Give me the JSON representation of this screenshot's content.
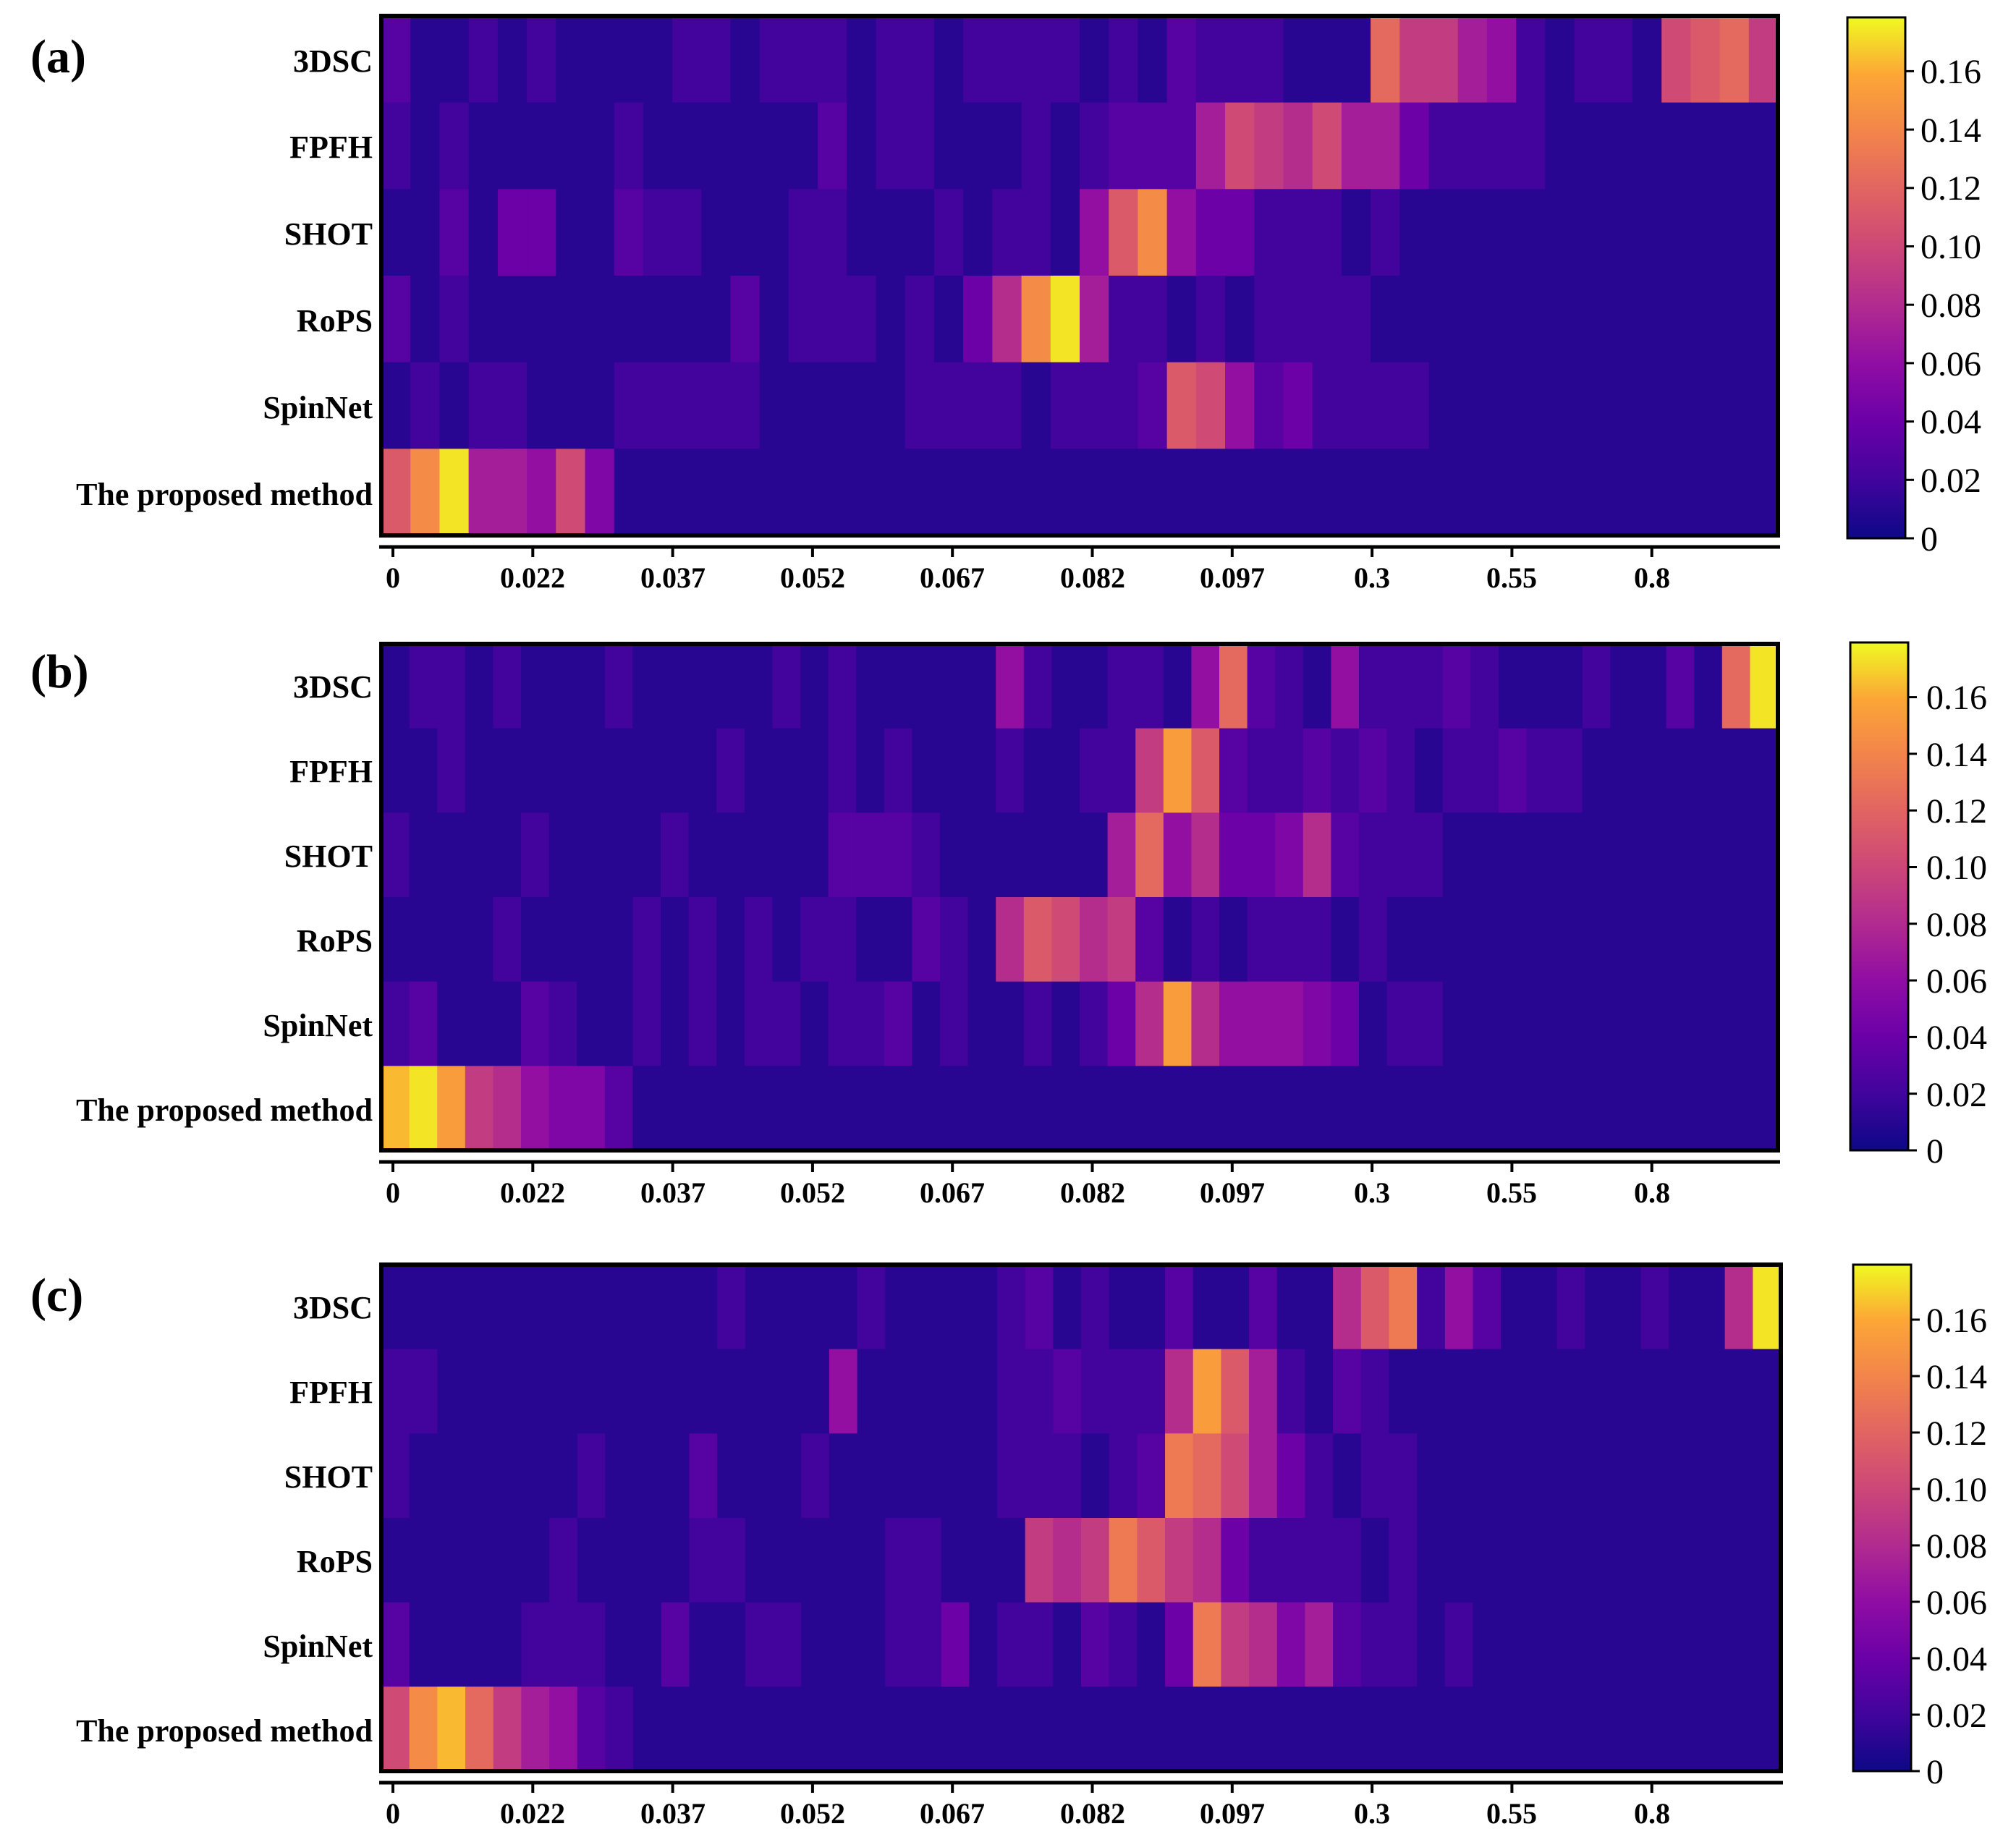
{
  "chart_data": [
    {
      "type": "heatmap",
      "panel_label": "(a)",
      "rows": [
        "3DSC",
        "FPFH",
        "SHOT",
        "RoPS",
        "SpinNet",
        "The proposed method"
      ],
      "xtick_labels": [
        "0",
        "0.022",
        "0.037",
        "0.052",
        "0.067",
        "0.082",
        "0.097",
        "0.3",
        "0.55",
        "0.8"
      ],
      "colorbar": {
        "colormap": "plasma",
        "range": [
          0,
          0.175
        ],
        "ticks": [
          "0",
          "0.02",
          "0.04",
          "0.06",
          "0.08",
          "0.10",
          "0.12",
          "0.14",
          "0.16"
        ]
      },
      "values": [
        [
          0.03,
          0.01,
          0.01,
          0.02,
          0.01,
          0.02,
          0.01,
          0.01,
          0.01,
          0.01,
          0.02,
          0.02,
          0.01,
          0.02,
          0.02,
          0.02,
          0.01,
          0.02,
          0.02,
          0.01,
          0.02,
          0.02,
          0.02,
          0.02,
          0.01,
          0.02,
          0.01,
          0.03,
          0.02,
          0.02,
          0.02,
          0.01,
          0.01,
          0.01,
          0.12,
          0.09,
          0.09,
          0.07,
          0.06,
          0.02,
          0.01,
          0.02,
          0.02,
          0.01,
          0.1,
          0.11,
          0.12,
          0.09
        ],
        [
          0.02,
          0.01,
          0.02,
          0.01,
          0.01,
          0.01,
          0.01,
          0.01,
          0.02,
          0.01,
          0.01,
          0.01,
          0.01,
          0.01,
          0.01,
          0.03,
          0.01,
          0.02,
          0.02,
          0.01,
          0.01,
          0.01,
          0.02,
          0.01,
          0.02,
          0.03,
          0.03,
          0.03,
          0.07,
          0.1,
          0.09,
          0.08,
          0.1,
          0.07,
          0.07,
          0.04,
          0.02,
          0.02,
          0.02,
          0.02,
          0.01,
          0.01,
          0.01,
          0.01,
          0.01,
          0.01,
          0.01,
          0.01
        ],
        [
          0.01,
          0.01,
          0.03,
          0.01,
          0.04,
          0.04,
          0.01,
          0.01,
          0.03,
          0.02,
          0.02,
          0.01,
          0.01,
          0.01,
          0.02,
          0.02,
          0.01,
          0.01,
          0.01,
          0.02,
          0.01,
          0.02,
          0.02,
          0.01,
          0.06,
          0.11,
          0.14,
          0.06,
          0.04,
          0.04,
          0.02,
          0.02,
          0.02,
          0.01,
          0.02,
          0.01,
          0.01,
          0.01,
          0.01,
          0.01,
          0.01,
          0.01,
          0.01,
          0.01,
          0.01,
          0.01,
          0.01,
          0.01
        ],
        [
          0.03,
          0.01,
          0.02,
          0.01,
          0.01,
          0.01,
          0.01,
          0.01,
          0.01,
          0.01,
          0.01,
          0.01,
          0.03,
          0.01,
          0.02,
          0.02,
          0.02,
          0.01,
          0.02,
          0.01,
          0.04,
          0.08,
          0.14,
          0.17,
          0.07,
          0.02,
          0.02,
          0.01,
          0.02,
          0.01,
          0.02,
          0.02,
          0.02,
          0.02,
          0.01,
          0.01,
          0.01,
          0.01,
          0.01,
          0.01,
          0.01,
          0.01,
          0.01,
          0.01,
          0.01,
          0.01,
          0.01,
          0.01
        ],
        [
          0.01,
          0.02,
          0.01,
          0.02,
          0.02,
          0.01,
          0.01,
          0.01,
          0.02,
          0.02,
          0.02,
          0.02,
          0.02,
          0.01,
          0.01,
          0.01,
          0.01,
          0.01,
          0.02,
          0.02,
          0.02,
          0.02,
          0.01,
          0.02,
          0.02,
          0.02,
          0.03,
          0.11,
          0.1,
          0.06,
          0.03,
          0.04,
          0.02,
          0.02,
          0.02,
          0.02,
          0.01,
          0.01,
          0.01,
          0.01,
          0.01,
          0.01,
          0.01,
          0.01,
          0.01,
          0.01,
          0.01,
          0.01
        ],
        [
          0.11,
          0.14,
          0.17,
          0.07,
          0.07,
          0.06,
          0.1,
          0.05,
          0.01,
          0.01,
          0.01,
          0.01,
          0.01,
          0.01,
          0.01,
          0.01,
          0.01,
          0.01,
          0.01,
          0.01,
          0.01,
          0.01,
          0.01,
          0.01,
          0.01,
          0.01,
          0.01,
          0.01,
          0.01,
          0.01,
          0.01,
          0.01,
          0.01,
          0.01,
          0.01,
          0.01,
          0.01,
          0.01,
          0.01,
          0.01,
          0.01,
          0.01,
          0.01,
          0.01,
          0.01,
          0.01,
          0.01,
          0.01
        ]
      ]
    },
    {
      "type": "heatmap",
      "panel_label": "(b)",
      "rows": [
        "3DSC",
        "FPFH",
        "SHOT",
        "RoPS",
        "SpinNet",
        "The proposed method"
      ],
      "xtick_labels": [
        "0",
        "0.022",
        "0.037",
        "0.052",
        "0.067",
        "0.082",
        "0.097",
        "0.3",
        "0.55",
        "0.8"
      ],
      "colorbar": {
        "colormap": "plasma",
        "range": [
          0,
          0.175
        ],
        "ticks": [
          "0",
          "0.02",
          "0.04",
          "0.06",
          "0.08",
          "0.10",
          "0.12",
          "0.14",
          "0.16"
        ]
      },
      "values": [
        [
          0.01,
          0.02,
          0.02,
          0.01,
          0.02,
          0.01,
          0.01,
          0.01,
          0.02,
          0.01,
          0.01,
          0.01,
          0.01,
          0.01,
          0.02,
          0.01,
          0.02,
          0.01,
          0.01,
          0.01,
          0.01,
          0.01,
          0.06,
          0.02,
          0.01,
          0.01,
          0.02,
          0.02,
          0.01,
          0.06,
          0.12,
          0.03,
          0.02,
          0.01,
          0.06,
          0.02,
          0.02,
          0.02,
          0.03,
          0.02,
          0.01,
          0.01,
          0.01,
          0.02,
          0.01,
          0.01,
          0.03,
          0.01,
          0.12,
          0.17
        ],
        [
          0.01,
          0.01,
          0.02,
          0.01,
          0.01,
          0.01,
          0.01,
          0.01,
          0.01,
          0.01,
          0.01,
          0.01,
          0.02,
          0.01,
          0.01,
          0.01,
          0.02,
          0.01,
          0.02,
          0.01,
          0.01,
          0.01,
          0.02,
          0.01,
          0.01,
          0.02,
          0.02,
          0.09,
          0.15,
          0.11,
          0.03,
          0.02,
          0.02,
          0.03,
          0.02,
          0.03,
          0.02,
          0.01,
          0.02,
          0.02,
          0.03,
          0.02,
          0.02,
          0.01,
          0.01,
          0.01,
          0.01,
          0.01,
          0.01,
          0.01
        ],
        [
          0.02,
          0.01,
          0.01,
          0.01,
          0.01,
          0.02,
          0.01,
          0.01,
          0.01,
          0.01,
          0.02,
          0.01,
          0.01,
          0.01,
          0.01,
          0.01,
          0.03,
          0.03,
          0.03,
          0.02,
          0.01,
          0.01,
          0.01,
          0.01,
          0.01,
          0.01,
          0.07,
          0.12,
          0.06,
          0.08,
          0.04,
          0.04,
          0.05,
          0.08,
          0.03,
          0.02,
          0.02,
          0.02,
          0.01,
          0.01,
          0.01,
          0.01,
          0.01,
          0.01,
          0.01,
          0.01,
          0.01,
          0.01,
          0.01,
          0.01
        ],
        [
          0.01,
          0.01,
          0.01,
          0.01,
          0.02,
          0.01,
          0.01,
          0.01,
          0.01,
          0.02,
          0.01,
          0.02,
          0.01,
          0.02,
          0.01,
          0.02,
          0.02,
          0.01,
          0.01,
          0.03,
          0.02,
          0.01,
          0.08,
          0.11,
          0.1,
          0.08,
          0.09,
          0.03,
          0.01,
          0.02,
          0.01,
          0.02,
          0.02,
          0.02,
          0.01,
          0.02,
          0.01,
          0.01,
          0.01,
          0.01,
          0.01,
          0.01,
          0.01,
          0.01,
          0.01,
          0.01,
          0.01,
          0.01,
          0.01,
          0.01
        ],
        [
          0.02,
          0.03,
          0.01,
          0.01,
          0.01,
          0.03,
          0.02,
          0.01,
          0.01,
          0.02,
          0.01,
          0.02,
          0.01,
          0.02,
          0.02,
          0.01,
          0.02,
          0.02,
          0.03,
          0.01,
          0.02,
          0.01,
          0.01,
          0.02,
          0.01,
          0.02,
          0.04,
          0.08,
          0.15,
          0.08,
          0.06,
          0.06,
          0.06,
          0.05,
          0.04,
          0.01,
          0.02,
          0.02,
          0.01,
          0.01,
          0.01,
          0.01,
          0.01,
          0.01,
          0.01,
          0.01,
          0.01,
          0.01,
          0.01,
          0.01
        ],
        [
          0.16,
          0.17,
          0.15,
          0.09,
          0.08,
          0.06,
          0.05,
          0.05,
          0.03,
          0.01,
          0.01,
          0.01,
          0.01,
          0.01,
          0.01,
          0.01,
          0.01,
          0.01,
          0.01,
          0.01,
          0.01,
          0.01,
          0.01,
          0.01,
          0.01,
          0.01,
          0.01,
          0.01,
          0.01,
          0.01,
          0.01,
          0.01,
          0.01,
          0.01,
          0.01,
          0.01,
          0.01,
          0.01,
          0.01,
          0.01,
          0.01,
          0.01,
          0.01,
          0.01,
          0.01,
          0.01,
          0.01,
          0.01,
          0.01,
          0.01
        ]
      ]
    },
    {
      "type": "heatmap",
      "panel_label": "(c)",
      "rows": [
        "3DSC",
        "FPFH",
        "SHOT",
        "RoPS",
        "SpinNet",
        "The proposed method"
      ],
      "xtick_labels": [
        "0",
        "0.022",
        "0.037",
        "0.052",
        "0.067",
        "0.082",
        "0.097",
        "0.3",
        "0.55",
        "0.8"
      ],
      "colorbar": {
        "colormap": "plasma",
        "range": [
          0,
          0.175
        ],
        "ticks": [
          "0",
          "0.02",
          "0.04",
          "0.06",
          "0.08",
          "0.10",
          "0.12",
          "0.14",
          "0.16"
        ]
      },
      "values": [
        [
          0.01,
          0.01,
          0.01,
          0.01,
          0.01,
          0.01,
          0.01,
          0.01,
          0.01,
          0.01,
          0.01,
          0.01,
          0.02,
          0.01,
          0.01,
          0.01,
          0.01,
          0.02,
          0.01,
          0.01,
          0.01,
          0.01,
          0.02,
          0.03,
          0.01,
          0.02,
          0.01,
          0.01,
          0.03,
          0.01,
          0.01,
          0.03,
          0.01,
          0.01,
          0.08,
          0.11,
          0.13,
          0.02,
          0.06,
          0.03,
          0.01,
          0.01,
          0.02,
          0.01,
          0.01,
          0.02,
          0.01,
          0.01,
          0.08,
          0.17
        ],
        [
          0.02,
          0.02,
          0.01,
          0.01,
          0.01,
          0.01,
          0.01,
          0.01,
          0.01,
          0.01,
          0.01,
          0.01,
          0.01,
          0.01,
          0.01,
          0.01,
          0.06,
          0.01,
          0.01,
          0.01,
          0.01,
          0.01,
          0.02,
          0.02,
          0.03,
          0.02,
          0.02,
          0.02,
          0.08,
          0.15,
          0.11,
          0.07,
          0.02,
          0.01,
          0.03,
          0.02,
          0.01,
          0.01,
          0.01,
          0.01,
          0.01,
          0.01,
          0.01,
          0.01,
          0.01,
          0.01,
          0.01,
          0.01,
          0.01,
          0.01
        ],
        [
          0.02,
          0.01,
          0.01,
          0.01,
          0.01,
          0.01,
          0.01,
          0.02,
          0.01,
          0.01,
          0.01,
          0.03,
          0.01,
          0.01,
          0.01,
          0.02,
          0.01,
          0.01,
          0.01,
          0.01,
          0.01,
          0.01,
          0.02,
          0.02,
          0.02,
          0.01,
          0.02,
          0.03,
          0.13,
          0.12,
          0.1,
          0.07,
          0.04,
          0.02,
          0.01,
          0.02,
          0.02,
          0.01,
          0.01,
          0.01,
          0.01,
          0.01,
          0.01,
          0.01,
          0.01,
          0.01,
          0.01,
          0.01,
          0.01,
          0.01
        ],
        [
          0.01,
          0.01,
          0.01,
          0.01,
          0.01,
          0.01,
          0.02,
          0.01,
          0.01,
          0.01,
          0.01,
          0.02,
          0.02,
          0.01,
          0.01,
          0.01,
          0.01,
          0.01,
          0.02,
          0.02,
          0.01,
          0.01,
          0.01,
          0.09,
          0.08,
          0.09,
          0.13,
          0.11,
          0.09,
          0.08,
          0.04,
          0.02,
          0.02,
          0.02,
          0.02,
          0.01,
          0.02,
          0.01,
          0.01,
          0.01,
          0.01,
          0.01,
          0.01,
          0.01,
          0.01,
          0.01,
          0.01,
          0.01,
          0.01,
          0.01
        ],
        [
          0.03,
          0.01,
          0.01,
          0.01,
          0.01,
          0.02,
          0.02,
          0.02,
          0.01,
          0.01,
          0.03,
          0.01,
          0.01,
          0.02,
          0.02,
          0.01,
          0.01,
          0.01,
          0.02,
          0.02,
          0.04,
          0.01,
          0.02,
          0.02,
          0.01,
          0.03,
          0.02,
          0.01,
          0.04,
          0.13,
          0.09,
          0.08,
          0.05,
          0.07,
          0.03,
          0.02,
          0.02,
          0.01,
          0.02,
          0.01,
          0.01,
          0.01,
          0.01,
          0.01,
          0.01,
          0.01,
          0.01,
          0.01,
          0.01,
          0.01
        ],
        [
          0.1,
          0.14,
          0.16,
          0.12,
          0.09,
          0.07,
          0.06,
          0.03,
          0.02,
          0.01,
          0.01,
          0.01,
          0.01,
          0.01,
          0.01,
          0.01,
          0.01,
          0.01,
          0.01,
          0.01,
          0.01,
          0.01,
          0.01,
          0.01,
          0.01,
          0.01,
          0.01,
          0.01,
          0.01,
          0.01,
          0.01,
          0.01,
          0.01,
          0.01,
          0.01,
          0.01,
          0.01,
          0.01,
          0.01,
          0.01,
          0.01,
          0.01,
          0.01,
          0.01,
          0.01,
          0.01,
          0.01,
          0.01,
          0.01,
          0.01
        ]
      ]
    }
  ]
}
